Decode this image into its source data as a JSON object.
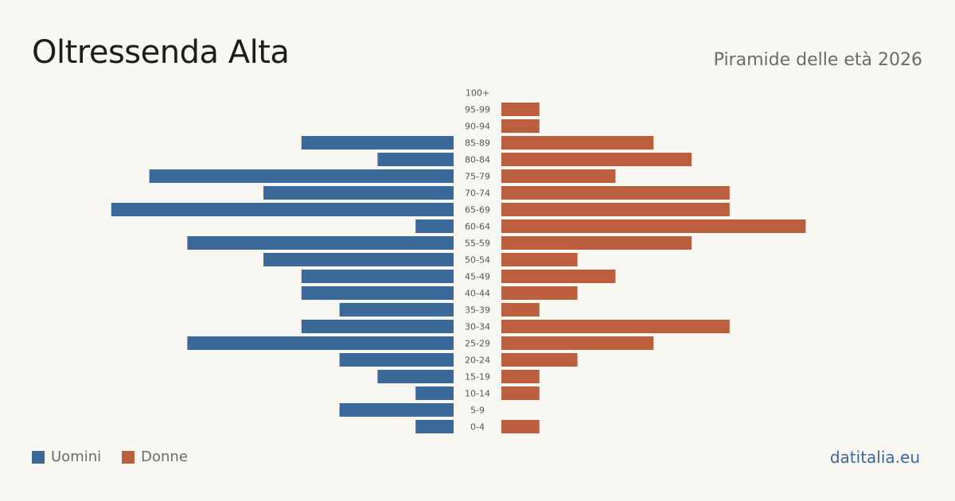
{
  "title": "Oltressenda Alta",
  "subtitle": "Piramide delle età 2026",
  "brand": "datitalia.eu",
  "colors": {
    "men": "#3b6a9a",
    "women": "#bb5f3f",
    "background": "#f9f7f2"
  },
  "legend": {
    "men_label": "Uomini",
    "women_label": "Donne"
  },
  "chart_data": {
    "type": "bar",
    "orientation": "horizontal-pyramid",
    "categories": [
      "100+",
      "95-99",
      "90-94",
      "85-89",
      "80-84",
      "75-79",
      "70-74",
      "65-69",
      "60-64",
      "55-59",
      "50-54",
      "45-49",
      "40-44",
      "35-39",
      "30-34",
      "25-29",
      "20-24",
      "15-19",
      "10-14",
      "5-9",
      "0-4"
    ],
    "series": [
      {
        "name": "Uomini",
        "values": [
          0,
          0,
          0,
          4,
          2,
          8,
          5,
          9,
          1,
          7,
          5,
          4,
          4,
          3,
          4,
          7,
          3,
          2,
          1,
          3,
          1
        ]
      },
      {
        "name": "Donne",
        "values": [
          0,
          1,
          1,
          4,
          5,
          3,
          6,
          6,
          8,
          5,
          2,
          3,
          2,
          1,
          6,
          4,
          2,
          1,
          1,
          0,
          1
        ]
      }
    ],
    "grid": false,
    "legend_position": "bottom-left"
  }
}
